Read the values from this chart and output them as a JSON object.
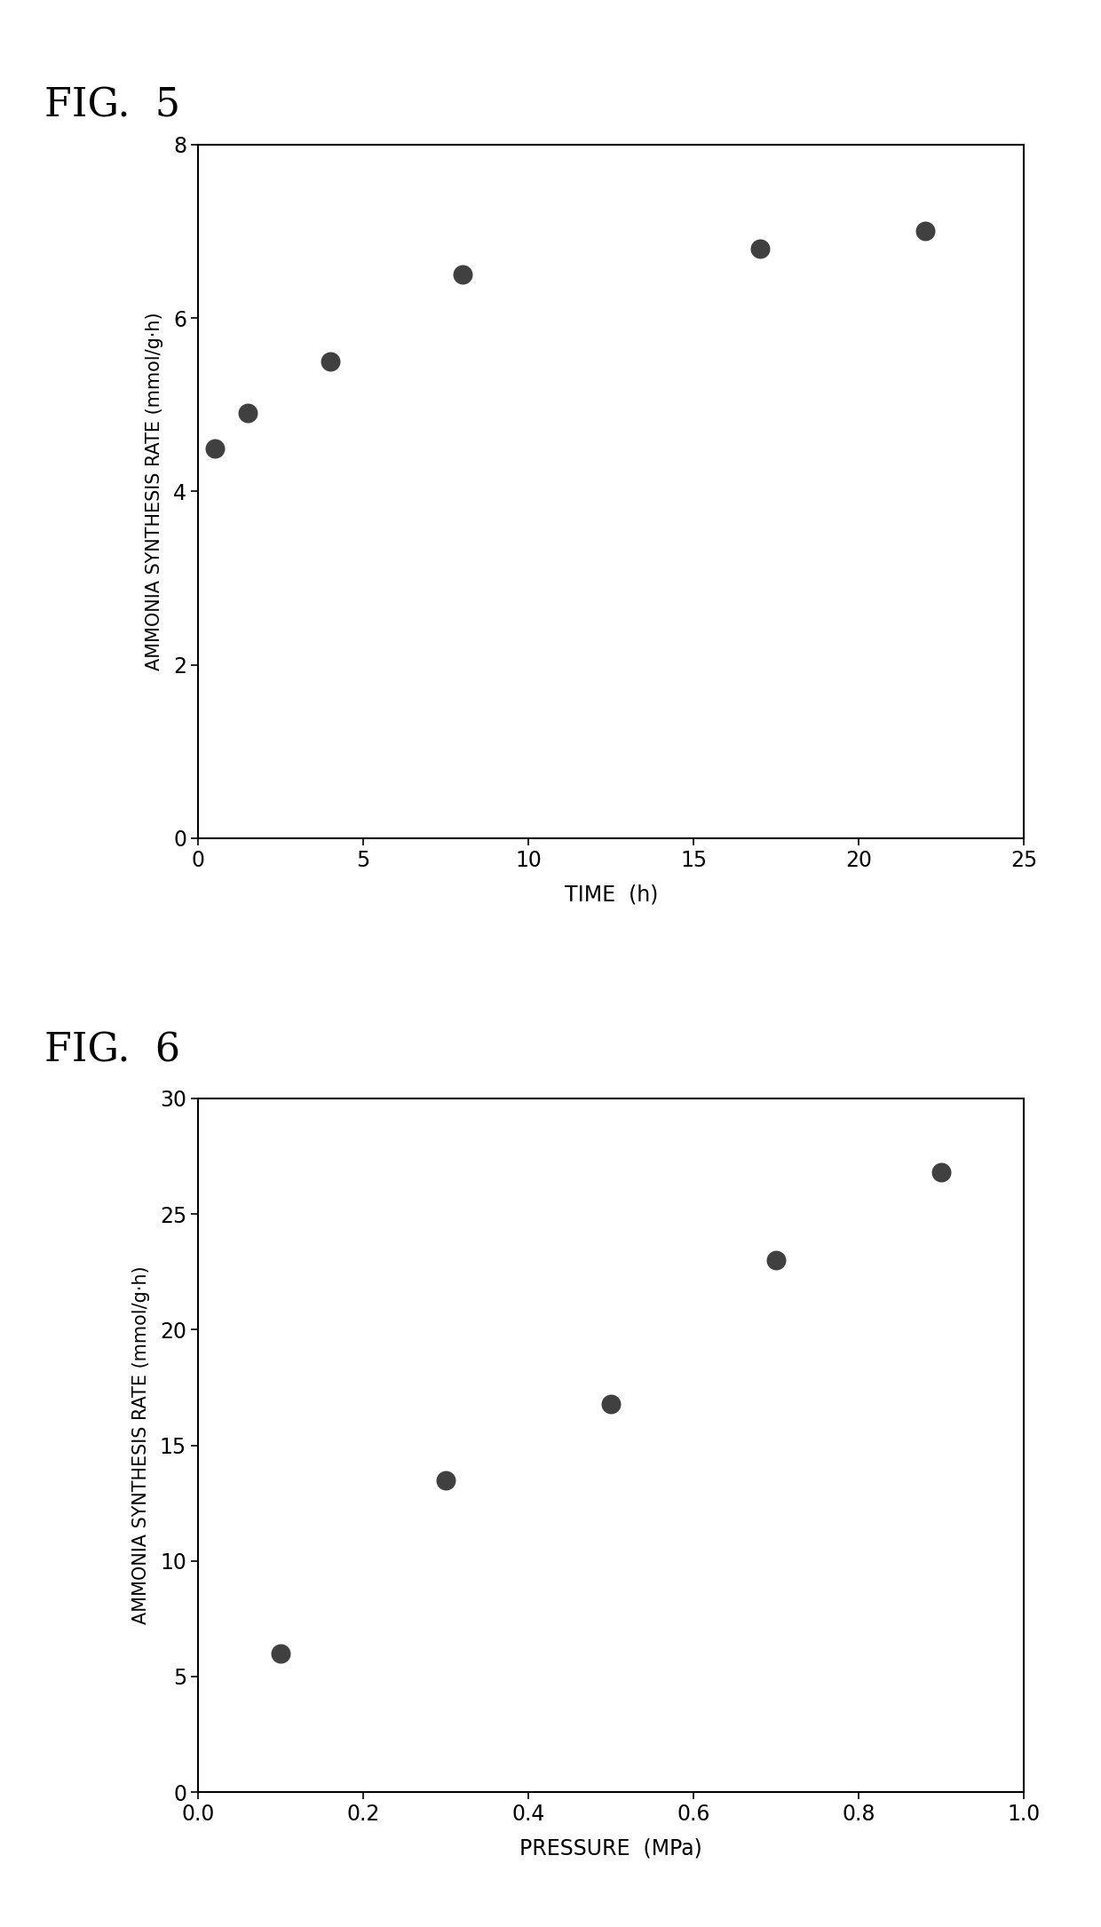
{
  "fig5": {
    "title": "FIG.  5",
    "x": [
      0.5,
      1.5,
      4.0,
      8.0,
      17.0,
      22.0
    ],
    "y": [
      4.5,
      4.9,
      5.5,
      6.5,
      6.8,
      7.0
    ],
    "xlabel": "TIME  (h)",
    "ylabel": "AMMONIA SYNTHESIS RATE (mmol/g·h)",
    "xlim": [
      0,
      25
    ],
    "ylim": [
      0,
      8
    ],
    "xticks": [
      0,
      5,
      10,
      15,
      20,
      25
    ],
    "yticks": [
      0,
      2,
      4,
      6,
      8
    ]
  },
  "fig6": {
    "title": "FIG.  6",
    "x": [
      0.1,
      0.3,
      0.5,
      0.7,
      0.9
    ],
    "y": [
      6.0,
      13.5,
      16.8,
      23.0,
      26.8
    ],
    "xlabel": "PRESSURE  (MPa)",
    "ylabel": "AMMONIA SYNTHESIS RATE (mmol/g·h)",
    "xlim": [
      0,
      1.0
    ],
    "ylim": [
      0,
      30
    ],
    "xticks": [
      0.0,
      0.2,
      0.4,
      0.6,
      0.8,
      1.0
    ],
    "yticks": [
      0,
      5,
      10,
      15,
      20,
      25,
      30
    ]
  },
  "marker_color": "#404040",
  "marker_size": 220,
  "background_color": "#ffffff",
  "title_fontsize": 32,
  "label_fontsize": 17,
  "tick_fontsize": 17
}
